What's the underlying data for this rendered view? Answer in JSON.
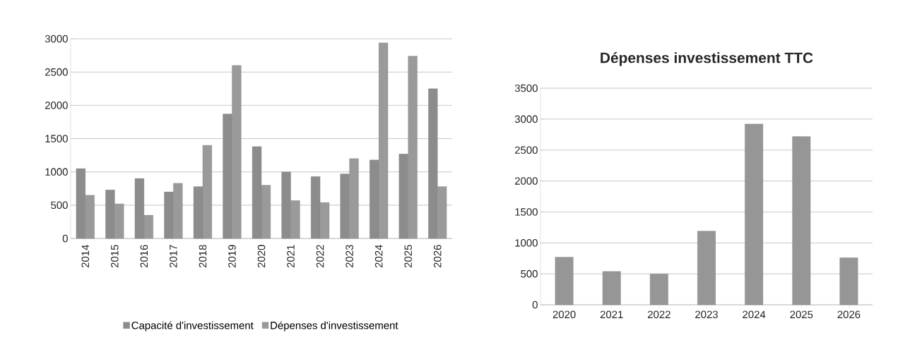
{
  "chart_data": [
    {
      "type": "bar",
      "categories": [
        "2014",
        "2015",
        "2016",
        "2017",
        "2018",
        "2019",
        "2020",
        "2021",
        "2022",
        "2023",
        "2024",
        "2025",
        "2026"
      ],
      "series": [
        {
          "name": "Capacité d'investissement",
          "color": "#8c8c8c",
          "values": [
            1050,
            730,
            900,
            700,
            780,
            1870,
            1380,
            1000,
            930,
            970,
            1180,
            1270,
            2250
          ]
        },
        {
          "name": "Dépenses d'investissement",
          "color": "#9a9a9a",
          "values": [
            650,
            520,
            350,
            830,
            1400,
            2600,
            800,
            570,
            540,
            1200,
            2940,
            2740,
            780
          ]
        }
      ],
      "ylim": [
        0,
        3000
      ],
      "yticks": [
        0,
        500,
        1000,
        1500,
        2000,
        2500,
        3000
      ],
      "grid": "y",
      "legend": "bottom"
    },
    {
      "type": "bar",
      "title": "Dépenses investissement  TTC",
      "categories": [
        "2020",
        "2021",
        "2022",
        "2023",
        "2024",
        "2025",
        "2026"
      ],
      "series": [
        {
          "color": "#969696",
          "values": [
            770,
            540,
            500,
            1190,
            2920,
            2720,
            760
          ]
        }
      ],
      "ylim": [
        0,
        3500
      ],
      "yticks": [
        0,
        500,
        1000,
        1500,
        2000,
        2500,
        3000,
        3500
      ],
      "grid": "y"
    }
  ]
}
